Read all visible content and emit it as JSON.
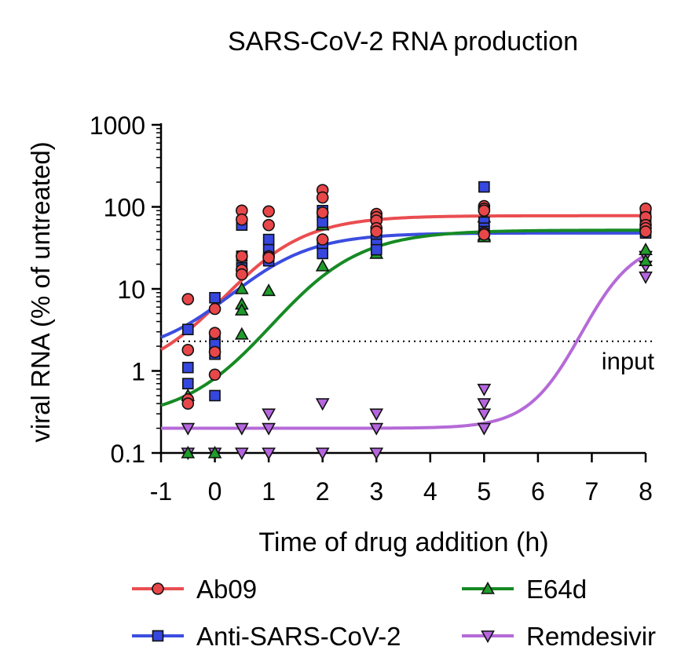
{
  "chart_data": {
    "type": "scatter",
    "title": "SARS-CoV-2 RNA production",
    "xlabel": "Time of drug addition (h)",
    "ylabel": "viral RNA (% of untreated)",
    "xlim": [
      -1,
      8
    ],
    "ylim": [
      0.1,
      1000
    ],
    "yscale": "log",
    "x_ticks": [
      "-1",
      "0",
      "1",
      "2",
      "3",
      "4",
      "5",
      "6",
      "7",
      "8"
    ],
    "y_ticks": [
      "0.1",
      "1",
      "10",
      "100",
      "1000"
    ],
    "reference_line": {
      "label": "input",
      "y": 2.3,
      "style": "dotted"
    },
    "legend_position": "bottom",
    "series": [
      {
        "name": "Ab09",
        "color": "#e8474a",
        "line_color": "#ea4d50",
        "marker": "circle",
        "points": [
          [
            -0.5,
            7.5
          ],
          [
            -0.5,
            1.8
          ],
          [
            -0.5,
            0.45
          ],
          [
            -0.5,
            0.4
          ],
          [
            0,
            5.7
          ],
          [
            0,
            2.9
          ],
          [
            0,
            1.7
          ],
          [
            0,
            0.9
          ],
          [
            0.5,
            90
          ],
          [
            0.5,
            70
          ],
          [
            0.5,
            25
          ],
          [
            0.5,
            17
          ],
          [
            0.5,
            15
          ],
          [
            1,
            88
          ],
          [
            1,
            60
          ],
          [
            1,
            25
          ],
          [
            1,
            24
          ],
          [
            2,
            160
          ],
          [
            2,
            130
          ],
          [
            2,
            85
          ],
          [
            2,
            40
          ],
          [
            3,
            82
          ],
          [
            3,
            75
          ],
          [
            3,
            68
          ],
          [
            3,
            55
          ],
          [
            3,
            50
          ],
          [
            5,
            102
          ],
          [
            5,
            95
          ],
          [
            5,
            90
          ],
          [
            5,
            48
          ],
          [
            5,
            46
          ],
          [
            8,
            95
          ],
          [
            8,
            75
          ],
          [
            8,
            60
          ],
          [
            8,
            55
          ],
          [
            8,
            50
          ]
        ],
        "fit": {
          "bottom": 0.8,
          "top": 78,
          "x50": 0.17,
          "slope": 1.3
        }
      },
      {
        "name": "Anti-SARS-CoV-2",
        "color": "#3547de",
        "line_color": "#3b4de0",
        "marker": "square",
        "points": [
          [
            -0.5,
            3.2
          ],
          [
            -0.5,
            1.1
          ],
          [
            -0.5,
            0.7
          ],
          [
            0,
            7.8
          ],
          [
            0,
            2.5
          ],
          [
            0,
            2.1
          ],
          [
            0,
            1.6
          ],
          [
            0,
            0.5
          ],
          [
            0.5,
            65
          ],
          [
            0.5,
            60
          ],
          [
            0.5,
            25
          ],
          [
            0.5,
            18
          ],
          [
            1,
            40
          ],
          [
            1,
            30
          ],
          [
            1,
            22
          ],
          [
            2,
            90
          ],
          [
            2,
            80
          ],
          [
            2,
            65
          ],
          [
            2,
            35
          ],
          [
            2,
            27
          ],
          [
            3,
            50
          ],
          [
            3,
            40
          ],
          [
            3,
            35
          ],
          [
            3,
            30
          ],
          [
            5,
            175
          ],
          [
            5,
            65
          ],
          [
            5,
            55
          ],
          [
            5,
            50
          ],
          [
            8,
            75
          ],
          [
            8,
            65
          ],
          [
            8,
            55
          ],
          [
            8,
            50
          ],
          [
            8,
            48
          ]
        ],
        "fit": {
          "bottom": 1.5,
          "top": 48,
          "x50": 0.3,
          "slope": 1.3
        }
      },
      {
        "name": "E64d",
        "color": "#1f9c2a",
        "line_color": "#168a24",
        "marker": "triangle-up",
        "points": [
          [
            -0.5,
            0.5
          ],
          [
            -0.5,
            0.1
          ],
          [
            0,
            0.1
          ],
          [
            0.5,
            10
          ],
          [
            0.5,
            6.5
          ],
          [
            0.5,
            5.5
          ],
          [
            0.5,
            2.8
          ],
          [
            1,
            9.5
          ],
          [
            2,
            60
          ],
          [
            2,
            19
          ],
          [
            3,
            27
          ],
          [
            5,
            75
          ],
          [
            5,
            45
          ],
          [
            5,
            43
          ],
          [
            8,
            30
          ],
          [
            8,
            22
          ]
        ],
        "fit": {
          "bottom": 0.25,
          "top": 52,
          "x50": 1.05,
          "slope": 1.2
        }
      },
      {
        "name": "Remdesivir",
        "color": "#b565de",
        "line_color": "#b56ad8",
        "marker": "triangle-down",
        "points": [
          [
            -0.5,
            0.2
          ],
          [
            -0.5,
            0.1
          ],
          [
            0,
            0.1
          ],
          [
            0.5,
            0.2
          ],
          [
            0.5,
            0.1
          ],
          [
            1,
            0.3
          ],
          [
            1,
            0.2
          ],
          [
            1,
            0.1
          ],
          [
            2,
            0.4
          ],
          [
            2,
            0.1
          ],
          [
            3,
            0.3
          ],
          [
            3,
            0.2
          ],
          [
            3,
            0.1
          ],
          [
            5,
            0.6
          ],
          [
            5,
            0.4
          ],
          [
            5,
            0.3
          ],
          [
            5,
            0.2
          ],
          [
            8,
            25
          ],
          [
            8,
            19
          ],
          [
            8,
            14
          ]
        ],
        "fit": {
          "bottom": 0.2,
          "top": 40,
          "x50": 6.8,
          "slope": 2.0
        }
      }
    ]
  }
}
